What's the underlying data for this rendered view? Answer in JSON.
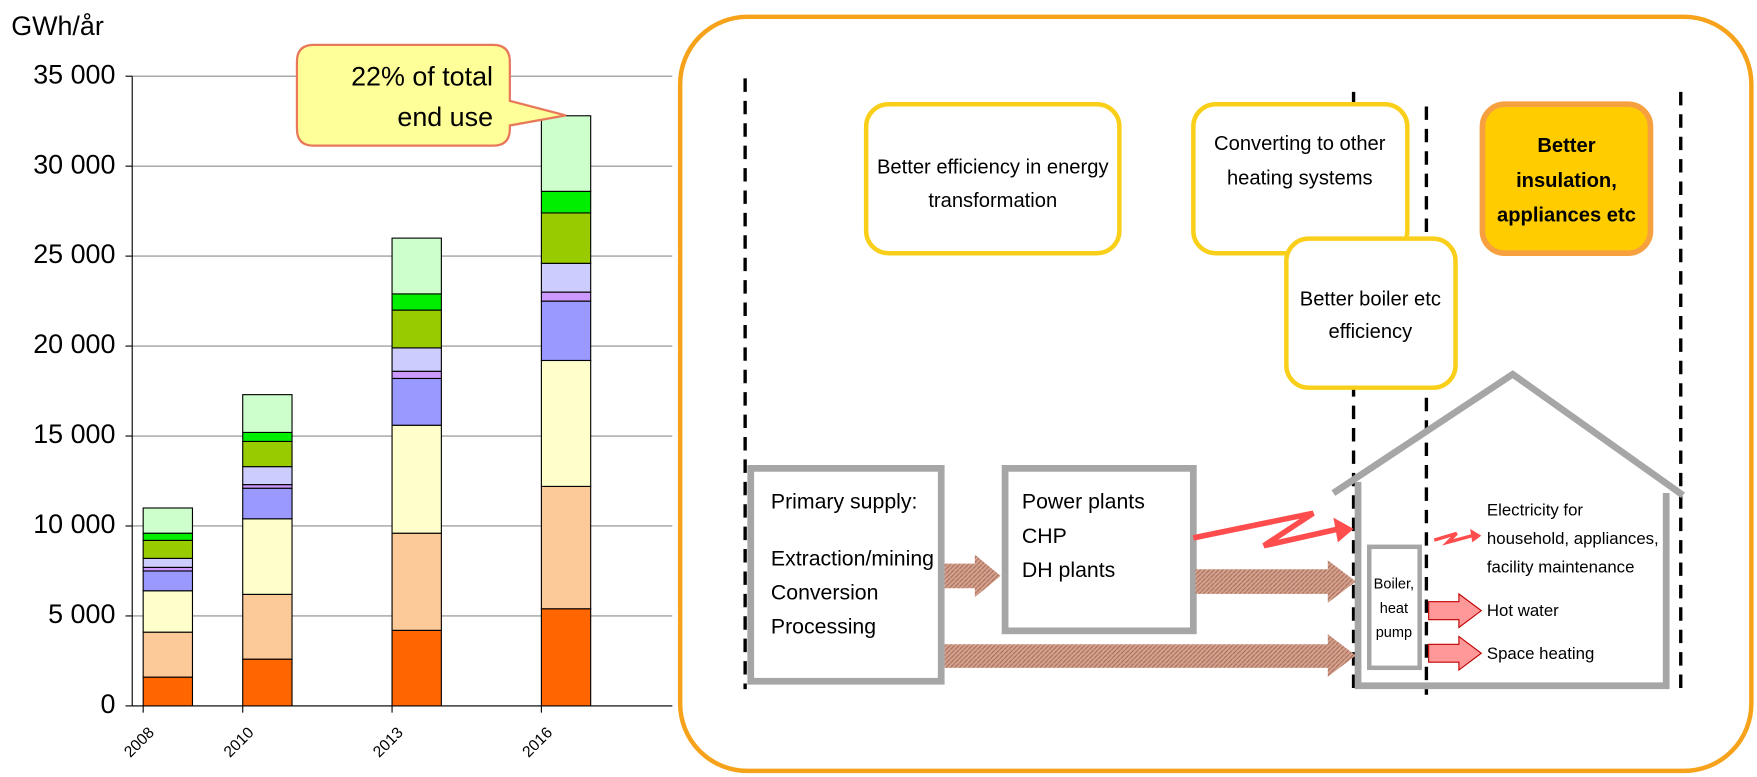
{
  "chart_data": {
    "type": "bar",
    "stacked": true,
    "ylabel": "GWh/år",
    "x": [
      2008,
      2010,
      2013,
      2016
    ],
    "xlim": [
      2007.78,
      2018.63
    ],
    "xticks": [
      2008,
      2010,
      2013,
      2016
    ],
    "ylim": [
      0,
      35000
    ],
    "yticks": [
      0,
      {
        "value": 5000,
        "label": "5 000"
      },
      {
        "value": 10000,
        "label": "10 000"
      },
      {
        "value": 15000,
        "label": "15 000"
      },
      {
        "value": 20000,
        "label": "20 000"
      },
      {
        "value": 25000,
        "label": "25 000"
      },
      {
        "value": 30000,
        "label": "30 000"
      },
      {
        "value": 35000,
        "label": "35 000"
      }
    ],
    "grid": true,
    "series": [
      {
        "color": "#ff6600",
        "values": [
          1600,
          2600,
          4200,
          5400
        ]
      },
      {
        "color": "#fcc999",
        "values": [
          2500,
          3600,
          5400,
          6800
        ]
      },
      {
        "color": "#ffffcc",
        "values": [
          2300,
          4200,
          6000,
          7000
        ]
      },
      {
        "color": "#9999ff",
        "values": [
          1100,
          1700,
          2600,
          3300
        ]
      },
      {
        "color": "#cc99ff",
        "values": [
          200,
          200,
          400,
          500
        ]
      },
      {
        "color": "#ccccff",
        "values": [
          500,
          1000,
          1300,
          1600
        ]
      },
      {
        "color": "#99cc00",
        "values": [
          1000,
          1400,
          2100,
          2800
        ]
      },
      {
        "color": "#00ee00",
        "values": [
          400,
          500,
          900,
          1200
        ]
      },
      {
        "color": "#ccffcc",
        "values": [
          1400,
          2100,
          3100,
          4200
        ]
      }
    ],
    "annotation": [
      "22% of total",
      "end use"
    ]
  },
  "diagram": {
    "boxes": [
      {
        "lines": [
          "Better efficiency in energy",
          "transformation"
        ]
      },
      {
        "lines": [
          "Converting to other",
          "heating systems"
        ]
      },
      {
        "lines": [
          "Better boiler etc",
          "efficiency"
        ]
      },
      {
        "lines": [
          "Better",
          "insulation,",
          "appliances etc"
        ]
      },
      {
        "lines": [
          "Primary supply:",
          "Extraction/mining",
          "Conversion",
          "Processing"
        ]
      },
      {
        "lines": [
          "Power plants",
          "CHP",
          "DH plants"
        ]
      },
      {
        "lines": [
          "Boiler,",
          "heat",
          "pump"
        ]
      }
    ],
    "outputs": [
      {
        "lines": [
          "Electricity for",
          "household, appliances,",
          "facility maintenance"
        ]
      },
      {
        "lines": [
          "Hot water"
        ]
      },
      {
        "lines": [
          "Space heating"
        ]
      }
    ]
  }
}
